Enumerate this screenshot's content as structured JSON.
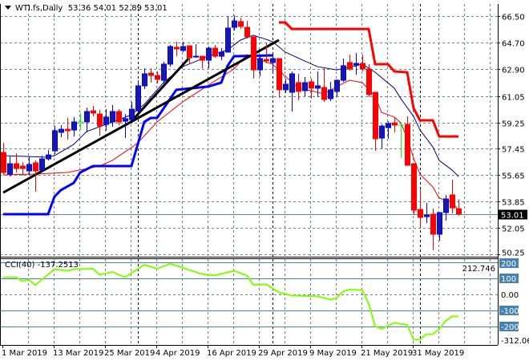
{
  "header": {
    "symbol_label": "WTI.fs,Daily",
    "ohlc": "53.36 54.01 52.89 53.01"
  },
  "cci_header": {
    "label": "CCI(40) -137.2513"
  },
  "colors": {
    "bull_body": "#1a1aa0",
    "bull_line": "#0000ff",
    "bear": "#ff0000",
    "doji": "#00ff00",
    "ma_fast": "#ff0000",
    "ma_slow": "#000080",
    "support": "#0000ff",
    "resistance": "#ff0000",
    "trend": "#000000",
    "cci": "#80ff00",
    "level_box": "#4682b4",
    "grid": "#708090"
  },
  "chart_data": [
    {
      "type": "candlestick",
      "title": "WTI.fs,Daily",
      "ylim": [
        50.25,
        66.5
      ],
      "y_ticks": [
        "66.50",
        "64.70",
        "62.90",
        "61.05",
        "59.25",
        "57.45",
        "55.65",
        "53.85",
        "52.05",
        "50.25"
      ],
      "current_price": "53.01",
      "x_tick_labels": [
        {
          "bar": 0,
          "label": "1 Mar 2019"
        },
        {
          "bar": 8,
          "label": "13 Mar 2019"
        },
        {
          "bar": 16,
          "label": "25 Mar 2019"
        },
        {
          "bar": 24,
          "label": "4 Apr 2019"
        },
        {
          "bar": 32,
          "label": "16 Apr 2019"
        },
        {
          "bar": 40,
          "label": "29 Apr 2019"
        },
        {
          "bar": 48,
          "label": "9 May 2019"
        },
        {
          "bar": 56,
          "label": "21 May 2019"
        },
        {
          "bar": 64,
          "label": "31 May 2019"
        }
      ],
      "period_separators": [
        21,
        42,
        65
      ],
      "ohlc": [
        [
          57.2,
          57.86,
          55.67,
          55.83
        ],
        [
          55.72,
          56.93,
          55.56,
          56.43
        ],
        [
          56.43,
          57.14,
          55.83,
          56.1
        ],
        [
          56.27,
          56.54,
          55.61,
          56.1
        ],
        [
          55.94,
          56.93,
          55.67,
          56.38
        ],
        [
          56.49,
          56.65,
          54.52,
          55.94
        ],
        [
          55.99,
          56.98,
          55.83,
          56.76
        ],
        [
          56.76,
          57.36,
          56.65,
          57.03
        ],
        [
          57.31,
          59.0,
          57.09,
          58.68
        ],
        [
          58.57,
          59.06,
          58.24,
          58.78
        ],
        [
          58.78,
          59.55,
          58.07,
          58.68
        ],
        [
          58.73,
          59.61,
          58.29,
          59.28
        ],
        [
          59.28,
          59.88,
          58.73,
          59.28
        ],
        [
          59.28,
          60.26,
          58.57,
          59.99
        ],
        [
          60.04,
          60.37,
          59.66,
          59.88
        ],
        [
          59.82,
          60.1,
          58.35,
          59.0
        ],
        [
          59.11,
          60.15,
          58.68,
          59.61
        ],
        [
          59.28,
          60.43,
          58.95,
          59.99
        ],
        [
          59.99,
          60.15,
          59.06,
          59.28
        ],
        [
          59.33,
          59.82,
          58.18,
          59.5
        ],
        [
          59.44,
          60.65,
          59.39,
          60.15
        ],
        [
          60.04,
          62.12,
          59.99,
          61.74
        ],
        [
          61.74,
          62.94,
          61.52,
          62.56
        ],
        [
          62.61,
          62.94,
          61.96,
          62.45
        ],
        [
          62.45,
          62.72,
          61.9,
          62.18
        ],
        [
          62.12,
          63.38,
          61.9,
          63.22
        ],
        [
          63.22,
          64.53,
          63.05,
          64.42
        ],
        [
          64.37,
          64.75,
          63.76,
          64.26
        ],
        [
          64.15,
          64.75,
          64.04,
          64.42
        ],
        [
          64.47,
          64.47,
          63.22,
          63.65
        ],
        [
          63.71,
          64.58,
          63.65,
          63.76
        ],
        [
          63.76,
          63.76,
          62.94,
          63.49
        ],
        [
          63.49,
          64.42,
          62.94,
          64.31
        ],
        [
          64.31,
          64.53,
          63.65,
          63.76
        ],
        [
          63.76,
          64.31,
          63.49,
          64.04
        ],
        [
          64.04,
          66.5,
          64.04,
          65.68
        ],
        [
          65.73,
          66.55,
          65.51,
          66.17
        ],
        [
          66.12,
          66.39,
          65.62,
          65.79
        ],
        [
          65.73,
          66.17,
          64.97,
          65.08
        ],
        [
          65.08,
          65.13,
          62.23,
          62.83
        ],
        [
          62.83,
          63.76,
          62.4,
          63.6
        ],
        [
          63.54,
          64.69,
          63.27,
          63.44
        ],
        [
          63.33,
          63.93,
          62.56,
          63.6
        ],
        [
          63.6,
          63.6,
          60.92,
          61.47
        ],
        [
          61.47,
          62.23,
          61.25,
          61.85
        ],
        [
          61.3,
          62.72,
          59.99,
          62.56
        ],
        [
          61.96,
          62.56,
          60.76,
          61.36
        ],
        [
          61.41,
          62.34,
          61.03,
          61.96
        ],
        [
          62.01,
          62.23,
          60.87,
          61.58
        ],
        [
          61.58,
          62.72,
          60.97,
          61.74
        ],
        [
          61.63,
          62.94,
          60.65,
          60.81
        ],
        [
          60.87,
          62.01,
          60.7,
          61.47
        ],
        [
          61.36,
          62.18,
          61.03,
          62.12
        ],
        [
          62.12,
          63.6,
          62.01,
          63.11
        ],
        [
          63.33,
          63.87,
          62.78,
          62.89
        ],
        [
          63.16,
          63.98,
          62.5,
          63.27
        ],
        [
          63.27,
          63.87,
          62.72,
          62.89
        ],
        [
          62.89,
          63.22,
          60.97,
          61.14
        ],
        [
          61.3,
          61.3,
          57.31,
          58.13
        ],
        [
          58.18,
          59.11,
          57.47,
          59.0
        ],
        [
          58.89,
          59.33,
          58.13,
          59.17
        ],
        [
          59.22,
          59.55,
          58.57,
          59.06
        ],
        [
          59.06,
          59.11,
          56.82,
          59.06
        ],
        [
          59.11,
          59.66,
          56.32,
          56.32
        ],
        [
          56.43,
          56.43,
          52.93,
          53.26
        ],
        [
          53.31,
          54.68,
          52.0,
          52.77
        ],
        [
          52.82,
          53.75,
          52.38,
          52.93
        ],
        [
          52.99,
          53.37,
          50.53,
          51.62
        ],
        [
          51.62,
          53.1,
          51.18,
          53.1
        ],
        [
          53.1,
          54.3,
          52.55,
          54.03
        ],
        [
          54.3,
          55.34,
          53.04,
          53.42
        ],
        [
          53.36,
          54.01,
          52.89,
          53.01
        ]
      ],
      "overlays": {
        "ma_fast": [
          [
            0,
            55.67
          ],
          [
            5,
            55.72
          ],
          [
            10,
            55.83
          ],
          [
            15,
            56.27
          ],
          [
            17,
            56.65
          ],
          [
            20,
            57.53
          ],
          [
            21,
            57.86
          ],
          [
            24,
            59.28
          ],
          [
            28,
            60.65
          ],
          [
            32,
            61.79
          ],
          [
            36,
            62.89
          ],
          [
            38,
            63.87
          ],
          [
            39,
            63.65
          ],
          [
            42,
            63.22
          ],
          [
            44,
            62.4
          ],
          [
            46,
            61.58
          ],
          [
            48,
            61.41
          ],
          [
            50,
            61.19
          ],
          [
            52,
            61.69
          ],
          [
            54,
            62.12
          ],
          [
            56,
            61.96
          ],
          [
            58,
            61.03
          ],
          [
            59,
            59.93
          ],
          [
            61,
            59.61
          ],
          [
            62,
            59.22
          ],
          [
            63,
            58.18
          ],
          [
            64,
            56.82
          ],
          [
            65,
            55.72
          ],
          [
            67,
            54.85
          ],
          [
            68,
            54.08
          ],
          [
            70,
            53.81
          ],
          [
            71,
            53.26
          ]
        ],
        "ma_slow": [
          [
            0,
            56.98
          ],
          [
            7,
            56.87
          ],
          [
            8,
            56.98
          ],
          [
            11,
            57.75
          ],
          [
            13,
            58.62
          ],
          [
            16,
            59.11
          ],
          [
            18,
            59.44
          ],
          [
            20,
            59.77
          ],
          [
            22,
            60.48
          ],
          [
            25,
            61.96
          ],
          [
            28,
            63.05
          ],
          [
            32,
            63.76
          ],
          [
            35,
            64.2
          ],
          [
            37,
            64.86
          ],
          [
            39,
            65.19
          ],
          [
            41,
            64.91
          ],
          [
            42,
            64.75
          ],
          [
            44,
            64.04
          ],
          [
            47,
            63.44
          ],
          [
            49,
            63.05
          ],
          [
            52,
            62.83
          ],
          [
            54,
            63.0
          ],
          [
            56,
            63.22
          ],
          [
            58,
            62.67
          ],
          [
            61,
            61.58
          ],
          [
            62,
            60.87
          ],
          [
            64,
            59.66
          ],
          [
            65,
            58.73
          ],
          [
            67,
            57.58
          ],
          [
            68,
            56.65
          ],
          [
            70,
            56.0
          ],
          [
            71,
            55.56
          ]
        ],
        "support_line": [
          [
            0,
            52.99
          ],
          [
            7,
            52.99
          ],
          [
            8,
            54.19
          ],
          [
            9,
            54.63
          ],
          [
            11,
            55.12
          ],
          [
            12,
            55.83
          ],
          [
            14,
            56.27
          ],
          [
            20,
            56.27
          ],
          [
            22,
            59.28
          ],
          [
            23,
            59.55
          ],
          [
            24,
            59.55
          ],
          [
            27,
            61.47
          ],
          [
            32,
            61.69
          ],
          [
            34,
            61.96
          ],
          [
            35,
            63.11
          ],
          [
            36,
            63.76
          ],
          [
            42,
            63.82
          ]
        ],
        "resistance_line": [
          [
            43,
            66.06
          ],
          [
            44,
            66.06
          ],
          [
            45,
            65.62
          ],
          [
            57,
            65.62
          ],
          [
            58,
            63.22
          ],
          [
            60,
            63.22
          ],
          [
            61,
            62.72
          ],
          [
            63,
            62.67
          ],
          [
            64,
            60.21
          ],
          [
            65,
            59.39
          ],
          [
            67,
            59.39
          ],
          [
            68,
            58.29
          ],
          [
            71,
            58.29
          ]
        ],
        "trendlines": [
          [
            [
              0,
              54.46
            ],
            [
              43,
              64.86
            ]
          ],
          [
            [
              19.9,
              59.28
            ],
            [
              28.9,
              63.6
            ]
          ]
        ]
      }
    },
    {
      "type": "line",
      "title": "CCI(40) -137.2513",
      "ylim": [
        -312.062,
        212.746
      ],
      "y_ticks": [
        "212.746",
        "200",
        "100",
        "0.00",
        "-100",
        "-200",
        "-312.062"
      ],
      "levels": [
        200,
        100,
        -100,
        -200
      ],
      "series": [
        {
          "name": "CCI(40)",
          "values": [
            [
              0,
              107
            ],
            [
              2,
              107
            ],
            [
              3,
              82
            ],
            [
              4,
              93
            ],
            [
              5,
              57
            ],
            [
              6,
              92
            ],
            [
              8,
              157
            ],
            [
              10,
              147
            ],
            [
              11,
              157
            ],
            [
              14,
              160
            ],
            [
              15,
              123
            ],
            [
              17,
              140
            ],
            [
              19,
              107
            ],
            [
              22,
              185
            ],
            [
              24,
              160
            ],
            [
              26,
              190
            ],
            [
              27,
              180
            ],
            [
              29,
              152
            ],
            [
              31,
              127
            ],
            [
              33,
              118
            ],
            [
              36,
              147
            ],
            [
              38,
              118
            ],
            [
              39,
              60
            ],
            [
              41,
              63
            ],
            [
              43,
              13
            ],
            [
              45,
              -7
            ],
            [
              49,
              -12
            ],
            [
              51,
              -32
            ],
            [
              52,
              -23
            ],
            [
              53,
              18
            ],
            [
              54,
              30
            ],
            [
              56,
              27
            ],
            [
              57,
              -57
            ],
            [
              58,
              -198
            ],
            [
              59,
              -215
            ],
            [
              61,
              -177
            ],
            [
              63,
              -190
            ],
            [
              64,
              -282
            ],
            [
              65,
              -282
            ],
            [
              66,
              -248
            ],
            [
              67,
              -248
            ],
            [
              68,
              -215
            ],
            [
              69,
              -165
            ],
            [
              70,
              -137
            ],
            [
              71,
              -137
            ]
          ]
        }
      ]
    }
  ]
}
